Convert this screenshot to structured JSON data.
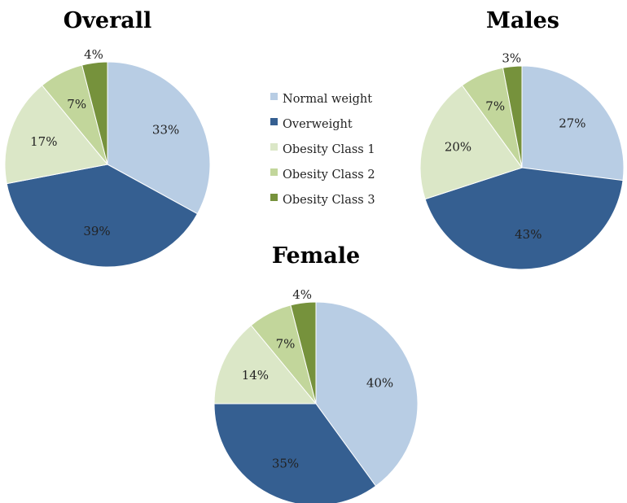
{
  "chart_data": {
    "type": "pie",
    "legend": {
      "placement": "center",
      "entries": [
        "Normal weight",
        "Overweight",
        "Obesity Class 1",
        "Obesity Class 2",
        "Obesity Class 3"
      ]
    },
    "colors": [
      "#b8cde4",
      "#355f91",
      "#dbe7c7",
      "#c2d69b",
      "#76923c"
    ],
    "charts": [
      {
        "title": "Overall",
        "categories": [
          "Normal weight",
          "Overweight",
          "Obesity Class 1",
          "Obesity Class 2",
          "Obesity Class 3"
        ],
        "values": [
          33,
          39,
          17,
          7,
          4
        ],
        "labels": [
          "33%",
          "39%",
          "17%",
          "7%",
          "4%"
        ]
      },
      {
        "title": "Males",
        "categories": [
          "Normal weight",
          "Overweight",
          "Obesity Class 1",
          "Obesity Class 2",
          "Obesity Class 3"
        ],
        "values": [
          27,
          43,
          20,
          7,
          3
        ],
        "labels": [
          "27%",
          "43%",
          "20%",
          "7%",
          "3%"
        ]
      },
      {
        "title": "Female",
        "categories": [
          "Normal weight",
          "Overweight",
          "Obesity Class 1",
          "Obesity Class 2",
          "Obesity Class 3"
        ],
        "values": [
          40,
          35,
          14,
          7,
          4
        ],
        "labels": [
          "40%",
          "35%",
          "14%",
          "7%",
          "4%"
        ]
      }
    ]
  }
}
